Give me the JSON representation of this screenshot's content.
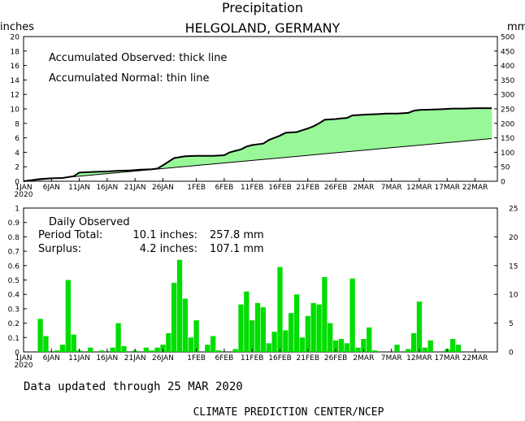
{
  "chart_data": [
    {
      "type": "area",
      "title": "Precipitation",
      "subtitle": "HELGOLAND, GERMANY",
      "ylabel_left": "inches",
      "ylabel_right": "mm",
      "ylim": [
        0,
        20
      ],
      "ylim_right": [
        0,
        500
      ],
      "y_ticks": [
        0,
        2,
        4,
        6,
        8,
        10,
        12,
        14,
        16,
        18,
        20
      ],
      "y_ticks_right": [
        0,
        50,
        100,
        150,
        200,
        250,
        300,
        350,
        400,
        450,
        500
      ],
      "x_ticks": [
        {
          "day": 1,
          "label": "1JAN",
          "year": "2020"
        },
        {
          "day": 6,
          "label": "6JAN"
        },
        {
          "day": 11,
          "label": "11JAN"
        },
        {
          "day": 16,
          "label": "16JAN"
        },
        {
          "day": 21,
          "label": "21JAN"
        },
        {
          "day": 26,
          "label": "26JAN"
        },
        {
          "day": 32,
          "label": "1FEB"
        },
        {
          "day": 37,
          "label": "6FEB"
        },
        {
          "day": 42,
          "label": "11FEB"
        },
        {
          "day": 47,
          "label": "16FEB"
        },
        {
          "day": 52,
          "label": "21FEB"
        },
        {
          "day": 57,
          "label": "26FEB"
        },
        {
          "day": 62,
          "label": "2MAR"
        },
        {
          "day": 67,
          "label": "7MAR"
        },
        {
          "day": 72,
          "label": "12MAR"
        },
        {
          "day": 77,
          "label": "17MAR"
        },
        {
          "day": 82,
          "label": "22MAR"
        }
      ],
      "annotations": [
        "Accumulated Observed: thick line",
        "Accumulated Normal: thin line"
      ],
      "surplus_color": "#98f898",
      "deficit_color": "#b08878",
      "series": [
        {
          "name": "Accumulated Observed",
          "days": [
            1,
            4,
            6,
            8,
            10,
            11,
            14,
            16,
            18,
            20,
            22,
            24,
            25,
            26,
            27,
            28,
            30,
            32,
            35,
            37,
            38,
            40,
            41,
            42,
            44,
            45,
            46,
            47,
            48,
            50,
            51,
            52,
            53,
            54,
            55,
            56,
            57,
            58,
            59,
            60,
            61,
            62,
            65,
            66,
            68,
            70,
            71,
            72,
            74,
            76,
            78,
            80,
            82,
            84,
            85
          ],
          "values": [
            0.0,
            0.3,
            0.4,
            0.45,
            0.7,
            1.2,
            1.3,
            1.35,
            1.45,
            1.5,
            1.6,
            1.65,
            1.75,
            2.2,
            2.7,
            3.2,
            3.45,
            3.5,
            3.5,
            3.6,
            4.0,
            4.4,
            4.8,
            5.0,
            5.2,
            5.7,
            6.0,
            6.3,
            6.7,
            6.8,
            7.05,
            7.3,
            7.6,
            8.0,
            8.5,
            8.55,
            8.6,
            8.7,
            8.75,
            9.1,
            9.15,
            9.2,
            9.3,
            9.35,
            9.35,
            9.45,
            9.75,
            9.85,
            9.9,
            9.95,
            10.05,
            10.05,
            10.1,
            10.1,
            10.1
          ]
        },
        {
          "name": "Accumulated Normal",
          "days": [
            1,
            85
          ],
          "values": [
            0.0,
            5.9
          ]
        }
      ]
    },
    {
      "type": "bar",
      "title": "Daily Observed",
      "ylim": [
        0,
        1
      ],
      "ylim_right": [
        0,
        25
      ],
      "y_ticks": [
        0,
        0.1,
        0.2,
        0.3,
        0.4,
        0.5,
        0.6,
        0.7,
        0.8,
        0.9,
        1
      ],
      "y_ticks_right": [
        0,
        5,
        10,
        15,
        20,
        25
      ],
      "bar_color": "#00dd00",
      "period_total_label": "Period Total:",
      "period_total_inches": "10.1 inches:",
      "period_total_mm": "257.8 mm",
      "surplus_label": "Surplus:",
      "surplus_inches": "4.2 inches:",
      "surplus_mm": "107.1 mm",
      "days": [
        4,
        5,
        7,
        8,
        9,
        10,
        11,
        13,
        15,
        17,
        18,
        19,
        21,
        23,
        24,
        25,
        26,
        27,
        28,
        29,
        30,
        31,
        32,
        34,
        35,
        36,
        39,
        40,
        41,
        42,
        43,
        44,
        45,
        46,
        47,
        48,
        49,
        50,
        51,
        52,
        53,
        54,
        55,
        56,
        57,
        58,
        59,
        60,
        61,
        62,
        63,
        64,
        68,
        70,
        71,
        72,
        73,
        74,
        77,
        78,
        79
      ],
      "values": [
        0.23,
        0.11,
        0.01,
        0.05,
        0.5,
        0.12,
        0.01,
        0.03,
        0.01,
        0.03,
        0.2,
        0.04,
        0.01,
        0.03,
        0.01,
        0.03,
        0.05,
        0.13,
        0.48,
        0.64,
        0.37,
        0.1,
        0.22,
        0.05,
        0.11,
        0.01,
        0.02,
        0.33,
        0.42,
        0.22,
        0.34,
        0.31,
        0.06,
        0.14,
        0.59,
        0.15,
        0.27,
        0.4,
        0.1,
        0.25,
        0.34,
        0.33,
        0.52,
        0.2,
        0.08,
        0.09,
        0.06,
        0.51,
        0.03,
        0.09,
        0.17,
        0.01,
        0.05,
        0.02,
        0.13,
        0.35,
        0.03,
        0.08,
        0.02,
        0.09,
        0.05
      ]
    }
  ],
  "footer": {
    "updated": "Data updated through 25 MAR 2020",
    "credit": "CLIMATE PREDICTION CENTER/NCEP"
  }
}
